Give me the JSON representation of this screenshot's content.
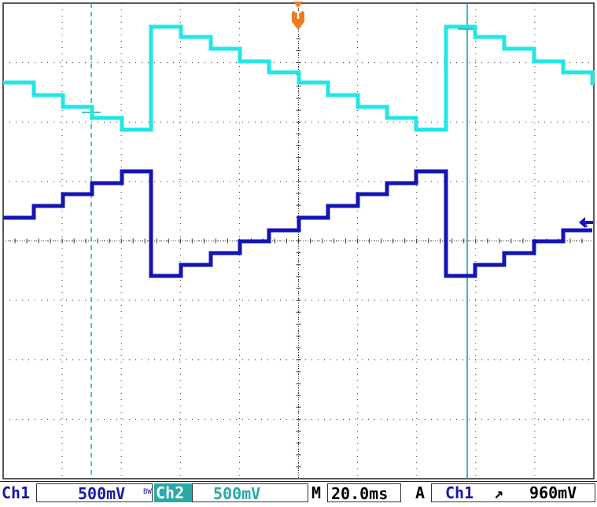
{
  "scope": {
    "trigger_marker": "T",
    "ch1_marker": "1",
    "colors": {
      "ch1": "#1414b4",
      "ch2": "#22e6e6",
      "cursor": "#19a6a6",
      "trigger": "#f07a1e",
      "grid": "#333333",
      "label_ch1": "#1a1aa0",
      "label_ch2": "#2aa8a8"
    }
  },
  "status": {
    "ch1_label": "Ch1",
    "ch1_scale": "500mV",
    "bw_label": "BW",
    "ch2_label": "Ch2",
    "ch2_scale": "500mV",
    "timebase_prefix": "M",
    "timebase": "20.0ms",
    "acq_mode": "A",
    "trigger_source": "Ch1",
    "trigger_slope": "↗",
    "trigger_level": "960mV"
  }
}
